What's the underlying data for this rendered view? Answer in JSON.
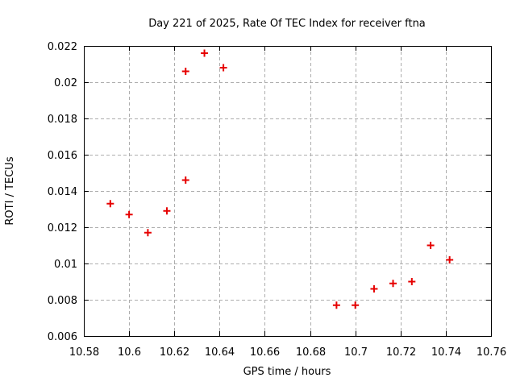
{
  "chart_data": {
    "type": "scatter",
    "title": "Day 221 of 2025, Rate Of TEC Index for receiver ftna",
    "xlabel": "GPS time / hours",
    "ylabel": "ROTI / TECUs",
    "xlim": [
      10.58,
      10.76
    ],
    "ylim": [
      0.006,
      0.022
    ],
    "x_ticks": [
      10.58,
      10.6,
      10.62,
      10.64,
      10.66,
      10.68,
      10.7,
      10.72,
      10.74,
      10.76
    ],
    "x_tick_labels": [
      "10.58",
      "10.6",
      "10.62",
      "10.64",
      "10.66",
      "10.68",
      "10.7",
      "10.72",
      "10.74",
      "10.76"
    ],
    "y_ticks": [
      0.006,
      0.008,
      0.01,
      0.012,
      0.014,
      0.016,
      0.018,
      0.02,
      0.022
    ],
    "y_tick_labels": [
      "0.006",
      "0.008",
      "0.01",
      "0.012",
      "0.014",
      "0.016",
      "0.018",
      "0.02",
      "0.022"
    ],
    "grid": true,
    "legend": "none",
    "marker": "plus",
    "marker_color": "#e60000",
    "grid_color": "#adadad",
    "border_color": "#000000",
    "background_color": "#ffffff",
    "text_color": "#000000",
    "points": [
      [
        10.5917,
        0.0133
      ],
      [
        10.6,
        0.0127
      ],
      [
        10.6083,
        0.0117
      ],
      [
        10.6167,
        0.0129
      ],
      [
        10.625,
        0.0146
      ],
      [
        10.625,
        0.0206
      ],
      [
        10.6333,
        0.0216
      ],
      [
        10.6417,
        0.0208
      ],
      [
        10.6917,
        0.0077
      ],
      [
        10.7,
        0.0077
      ],
      [
        10.7083,
        0.0086
      ],
      [
        10.7167,
        0.0089
      ],
      [
        10.725,
        0.009
      ],
      [
        10.7333,
        0.011
      ],
      [
        10.7417,
        0.0102
      ]
    ]
  }
}
